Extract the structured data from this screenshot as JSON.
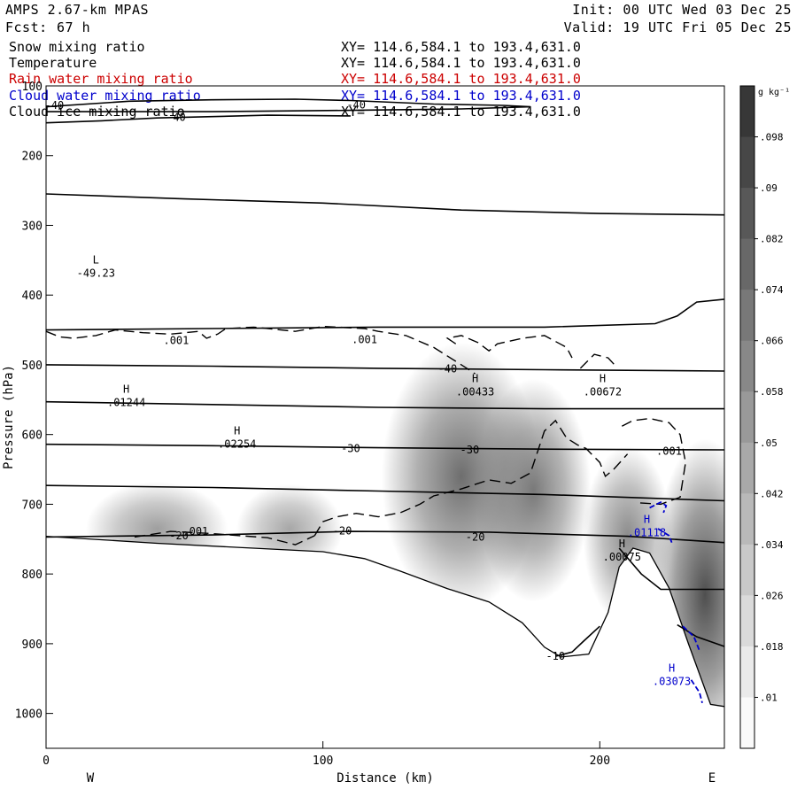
{
  "header": {
    "model": "AMPS 2.67-km MPAS",
    "init": "Init: 00 UTC Wed 03 Dec 25",
    "fcst_label": "Fcst:",
    "fcst_value": "67 h",
    "valid": "Valid: 19 UTC Fri 05 Dec 25"
  },
  "fields": [
    {
      "name": "Snow mixing ratio",
      "xy": "XY= 114.6,584.1 to 193.4,631.0",
      "color": "#000000"
    },
    {
      "name": "Temperature",
      "xy": "XY= 114.6,584.1 to 193.4,631.0",
      "color": "#000000"
    },
    {
      "name": "Rain water mixing ratio",
      "xy": "XY= 114.6,584.1 to 193.4,631.0",
      "color": "#cc0000"
    },
    {
      "name": "Cloud water mixing ratio",
      "xy": "XY= 114.6,584.1 to 193.4,631.0",
      "color": "#0000cc"
    },
    {
      "name": "Cloud ice mixing ratio",
      "xy": "XY= 114.6,584.1 to 193.4,631.0",
      "color": "#000000"
    }
  ],
  "chart_data": {
    "type": "cross-section",
    "xlabel": "Distance (km)",
    "ylabel": "Pressure (hPa)",
    "xlim": [
      0,
      245
    ],
    "ylim": [
      1050,
      100
    ],
    "x_ticks": [
      "0",
      "100",
      "200"
    ],
    "y_ticks": [
      "100",
      "200",
      "300",
      "400",
      "500",
      "600",
      "700",
      "800",
      "900",
      "1000"
    ],
    "y_tick_values": [
      100,
      200,
      300,
      400,
      500,
      600,
      700,
      800,
      900,
      1000
    ],
    "x_tick_values": [
      0,
      100,
      200
    ],
    "left_end_label": "W",
    "right_end_label": "E",
    "colorbar": {
      "unit": "g kg⁻¹",
      "labels": [
        ".098",
        ".09",
        ".082",
        ".074",
        ".066",
        ".058",
        ".05",
        ".042",
        ".034",
        ".026",
        ".018",
        ".01"
      ],
      "levels": [
        0.098,
        0.09,
        0.082,
        0.074,
        0.066,
        0.058,
        0.05,
        0.042,
        0.034,
        0.026,
        0.018,
        0.01
      ]
    },
    "temperature_contours": [
      {
        "label": "-40",
        "points": [
          [
            0,
            130
          ],
          [
            30,
            122
          ],
          [
            60,
            120
          ],
          [
            90,
            119
          ],
          [
            110,
            121
          ],
          [
            140,
            126
          ],
          [
            165,
            128
          ],
          [
            175,
            130
          ],
          [
            150,
            133
          ],
          [
            110,
            135
          ],
          [
            60,
            137
          ],
          [
            0,
            137
          ]
        ]
      },
      {
        "label": "-40",
        "points": [
          [
            0,
            153
          ],
          [
            20,
            150
          ],
          [
            40,
            146
          ],
          [
            80,
            142
          ],
          [
            110,
            143
          ]
        ]
      },
      {
        "label": "",
        "points": [
          [
            0,
            255
          ],
          [
            50,
            262
          ],
          [
            100,
            268
          ],
          [
            150,
            278
          ],
          [
            200,
            283
          ],
          [
            245,
            285
          ]
        ]
      },
      {
        "label": "",
        "points": [
          [
            0,
            450
          ],
          [
            60,
            448
          ],
          [
            120,
            446
          ],
          [
            180,
            446
          ],
          [
            220,
            441
          ],
          [
            228,
            430
          ],
          [
            235,
            410
          ],
          [
            245,
            406
          ]
        ]
      },
      {
        "label": "-40",
        "points": [
          [
            0,
            500
          ],
          [
            60,
            502
          ],
          [
            120,
            505
          ],
          [
            180,
            507
          ],
          [
            245,
            509
          ]
        ]
      },
      {
        "label": "",
        "points": [
          [
            0,
            553
          ],
          [
            60,
            557
          ],
          [
            120,
            561
          ],
          [
            180,
            563
          ],
          [
            245,
            563
          ]
        ]
      },
      {
        "label": "-30",
        "points": [
          [
            0,
            614
          ],
          [
            60,
            616
          ],
          [
            120,
            619
          ],
          [
            180,
            621
          ],
          [
            245,
            622
          ]
        ]
      },
      {
        "label": "",
        "points": [
          [
            0,
            673
          ],
          [
            60,
            676
          ],
          [
            120,
            681
          ],
          [
            180,
            686
          ],
          [
            245,
            695
          ]
        ]
      },
      {
        "label": "-20",
        "points": [
          [
            0,
            747
          ],
          [
            60,
            744
          ],
          [
            110,
            739
          ],
          [
            160,
            740
          ],
          [
            210,
            746
          ],
          [
            245,
            755
          ]
        ]
      },
      {
        "label": "",
        "points": [
          [
            207,
            763
          ],
          [
            215,
            800
          ],
          [
            222,
            822
          ],
          [
            245,
            822
          ]
        ]
      },
      {
        "label": "",
        "points": [
          [
            228,
            873
          ],
          [
            235,
            890
          ],
          [
            245,
            904
          ]
        ]
      },
      {
        "label": "-10",
        "points": [
          [
            184,
            918
          ],
          [
            190,
            912
          ],
          [
            194,
            897
          ],
          [
            200,
            875
          ]
        ]
      }
    ],
    "terrain": [
      [
        0,
        746
      ],
      [
        40,
        756
      ],
      [
        100,
        768
      ],
      [
        115,
        778
      ],
      [
        128,
        796
      ],
      [
        145,
        821
      ],
      [
        160,
        840
      ],
      [
        172,
        870
      ],
      [
        180,
        905
      ],
      [
        186,
        919
      ],
      [
        196,
        915
      ],
      [
        203,
        855
      ],
      [
        207,
        790
      ],
      [
        212,
        763
      ],
      [
        218,
        770
      ],
      [
        225,
        820
      ],
      [
        232,
        900
      ],
      [
        240,
        987
      ],
      [
        245,
        990
      ]
    ],
    "snow_cores": [
      {
        "x": 40,
        "p": 735,
        "rx": 16,
        "rp": 42,
        "value": 0.04
      },
      {
        "x": 88,
        "p": 735,
        "rx": 12,
        "rp": 40,
        "value": 0.036
      },
      {
        "x": 150,
        "p": 660,
        "rx": 18,
        "rp": 120,
        "value": 0.066
      },
      {
        "x": 176,
        "p": 680,
        "rx": 13,
        "rp": 100,
        "value": 0.06
      },
      {
        "x": 210,
        "p": 745,
        "rx": 10,
        "rp": 80,
        "value": 0.05
      },
      {
        "x": 238,
        "p": 830,
        "rx": 12,
        "rp": 140,
        "value": 0.082
      }
    ],
    "extrema_labels": [
      {
        "kind": "L",
        "value": "-49.23",
        "x": 18,
        "p": 360
      },
      {
        "kind": "H",
        "value": ".01244",
        "x": 29,
        "p": 545
      },
      {
        "kind": "H",
        "value": ".02254",
        "x": 69,
        "p": 605
      },
      {
        "kind": "H",
        "value": ".00433",
        "x": 155,
        "p": 530
      },
      {
        "kind": "H",
        "value": ".00672",
        "x": 201,
        "p": 530
      },
      {
        "kind": "H",
        "value": ".00075",
        "x": 208,
        "p": 767
      },
      {
        "kind": "H",
        "value": ".01118",
        "x": 217,
        "p": 732,
        "color": "#0000cc"
      },
      {
        "kind": "H",
        "value": ".03073",
        "x": 226,
        "p": 945,
        "color": "#0000cc"
      }
    ],
    "contour_labels": [
      {
        "text": "-40",
        "x": 3,
        "p": 128
      },
      {
        "text": "-40",
        "x": 112,
        "p": 127
      },
      {
        "text": "-40",
        "x": 47,
        "p": 145
      },
      {
        "text": "-40",
        "x": 145,
        "p": 506
      },
      {
        "text": ".001",
        "x": 47,
        "p": 465
      },
      {
        "text": ".001",
        "x": 115,
        "p": 464
      },
      {
        "text": ".001",
        "x": 225,
        "p": 624
      },
      {
        "text": ".001",
        "x": 54,
        "p": 739
      },
      {
        "text": "-30",
        "x": 110,
        "p": 620
      },
      {
        "text": "-30",
        "x": 153,
        "p": 622
      },
      {
        "text": "-20",
        "x": 48,
        "p": 745
      },
      {
        "text": "-20",
        "x": 107,
        "p": 738
      },
      {
        "text": "-20",
        "x": 155,
        "p": 747
      },
      {
        "text": "-10",
        "x": 184,
        "p": 918
      }
    ],
    "snow_001_contours": [
      [
        [
          0,
          452
        ],
        [
          5,
          460
        ],
        [
          10,
          462
        ],
        [
          18,
          458
        ],
        [
          25,
          450
        ],
        [
          35,
          454
        ],
        [
          45,
          456
        ],
        [
          55,
          452
        ],
        [
          58,
          462
        ],
        [
          62,
          456
        ],
        [
          65,
          448
        ],
        [
          75,
          446
        ],
        [
          90,
          452
        ],
        [
          100,
          445
        ],
        [
          115,
          448
        ],
        [
          120,
          452
        ],
        [
          130,
          458
        ],
        [
          140,
          475
        ],
        [
          148,
          495
        ],
        [
          152,
          505
        ],
        [
          155,
          513
        ]
      ],
      [
        [
          148,
          470
        ],
        [
          145,
          462
        ],
        [
          150,
          458
        ],
        [
          156,
          468
        ],
        [
          160,
          480
        ],
        [
          163,
          470
        ],
        [
          172,
          462
        ],
        [
          180,
          458
        ],
        [
          188,
          475
        ],
        [
          190,
          490
        ]
      ],
      [
        [
          193,
          505
        ],
        [
          198,
          485
        ],
        [
          203,
          490
        ],
        [
          206,
          503
        ]
      ],
      [
        [
          97,
          745
        ],
        [
          100,
          725
        ],
        [
          105,
          718
        ],
        [
          112,
          713
        ],
        [
          120,
          718
        ],
        [
          128,
          712
        ],
        [
          135,
          700
        ],
        [
          140,
          688
        ],
        [
          150,
          678
        ],
        [
          160,
          665
        ],
        [
          168,
          670
        ],
        [
          175,
          655
        ],
        [
          180,
          595
        ],
        [
          184,
          580
        ],
        [
          188,
          605
        ],
        [
          192,
          615
        ],
        [
          195,
          620
        ],
        [
          200,
          640
        ],
        [
          202,
          660
        ],
        [
          205,
          650
        ],
        [
          210,
          628
        ]
      ],
      [
        [
          208,
          588
        ],
        [
          212,
          580
        ],
        [
          218,
          577
        ],
        [
          225,
          583
        ],
        [
          229,
          600
        ],
        [
          231,
          640
        ],
        [
          229,
          690
        ],
        [
          222,
          700
        ],
        [
          214,
          698
        ]
      ],
      [
        [
          32,
          747
        ],
        [
          45,
          739
        ],
        [
          60,
          742
        ],
        [
          70,
          745
        ],
        [
          80,
          748
        ],
        [
          90,
          758
        ],
        [
          97,
          745
        ]
      ]
    ],
    "cloud_water": [
      [
        [
          218,
          705
        ],
        [
          222,
          697
        ],
        [
          224,
          702
        ],
        [
          223,
          712
        ]
      ],
      [
        [
          221,
          735
        ],
        [
          225,
          745
        ],
        [
          226,
          755
        ]
      ],
      [
        [
          230,
          875
        ],
        [
          234,
          890
        ],
        [
          236,
          910
        ]
      ],
      [
        [
          233,
          952
        ],
        [
          236,
          970
        ],
        [
          237,
          985
        ]
      ]
    ]
  }
}
